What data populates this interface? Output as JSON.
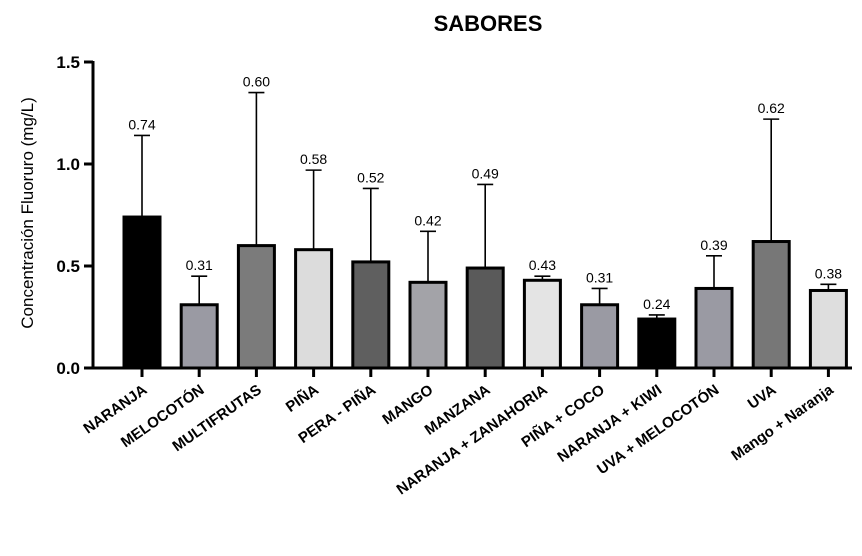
{
  "chart_data": {
    "type": "bar",
    "title": "SABORES",
    "xlabel": "",
    "ylabel": "Concentración Fluoruro (mg/L)",
    "ylim": [
      0,
      1.5
    ],
    "yticks": [
      "0.0",
      "0.5",
      "1.0",
      "1.5"
    ],
    "ytick_values": [
      0,
      0.5,
      1.0,
      1.5
    ],
    "grid": false,
    "categories": [
      "NARANJA",
      "MELOCOTÓN",
      "MULTIFRUTAS",
      "PIÑA",
      "PERA - PIÑA",
      "MANGO",
      "MANZANA",
      "NARANJA + ZANAHORIA",
      "PIÑA + COCO",
      "NARANJA + KIWI",
      "UVA + MELOCOTÓN",
      "UVA",
      "Mango + Naranja"
    ],
    "values": [
      0.74,
      0.31,
      0.6,
      0.58,
      0.52,
      0.42,
      0.49,
      0.43,
      0.31,
      0.24,
      0.39,
      0.62,
      0.38
    ],
    "error_upper": [
      1.14,
      0.45,
      1.35,
      0.97,
      0.88,
      0.67,
      0.9,
      0.45,
      0.39,
      0.26,
      0.55,
      1.22,
      0.41
    ],
    "value_labels": [
      null,
      "0.31",
      "0.60",
      "0.58",
      "0.52",
      "0.42",
      "0.49",
      "0.43",
      "0.31",
      "0.24",
      "0.39",
      "0.62",
      "0.38"
    ],
    "top_label": {
      "index": 0,
      "text": "0.74"
    },
    "bar_colors": [
      "#000000",
      "#9a9aa3",
      "#7b7b7b",
      "#dcdcdc",
      "#5f5f5f",
      "#a3a3a8",
      "#5a5a5a",
      "#e4e4e4",
      "#9a9aa3",
      "#000000",
      "#9a9aa3",
      "#777777",
      "#dedede"
    ]
  }
}
